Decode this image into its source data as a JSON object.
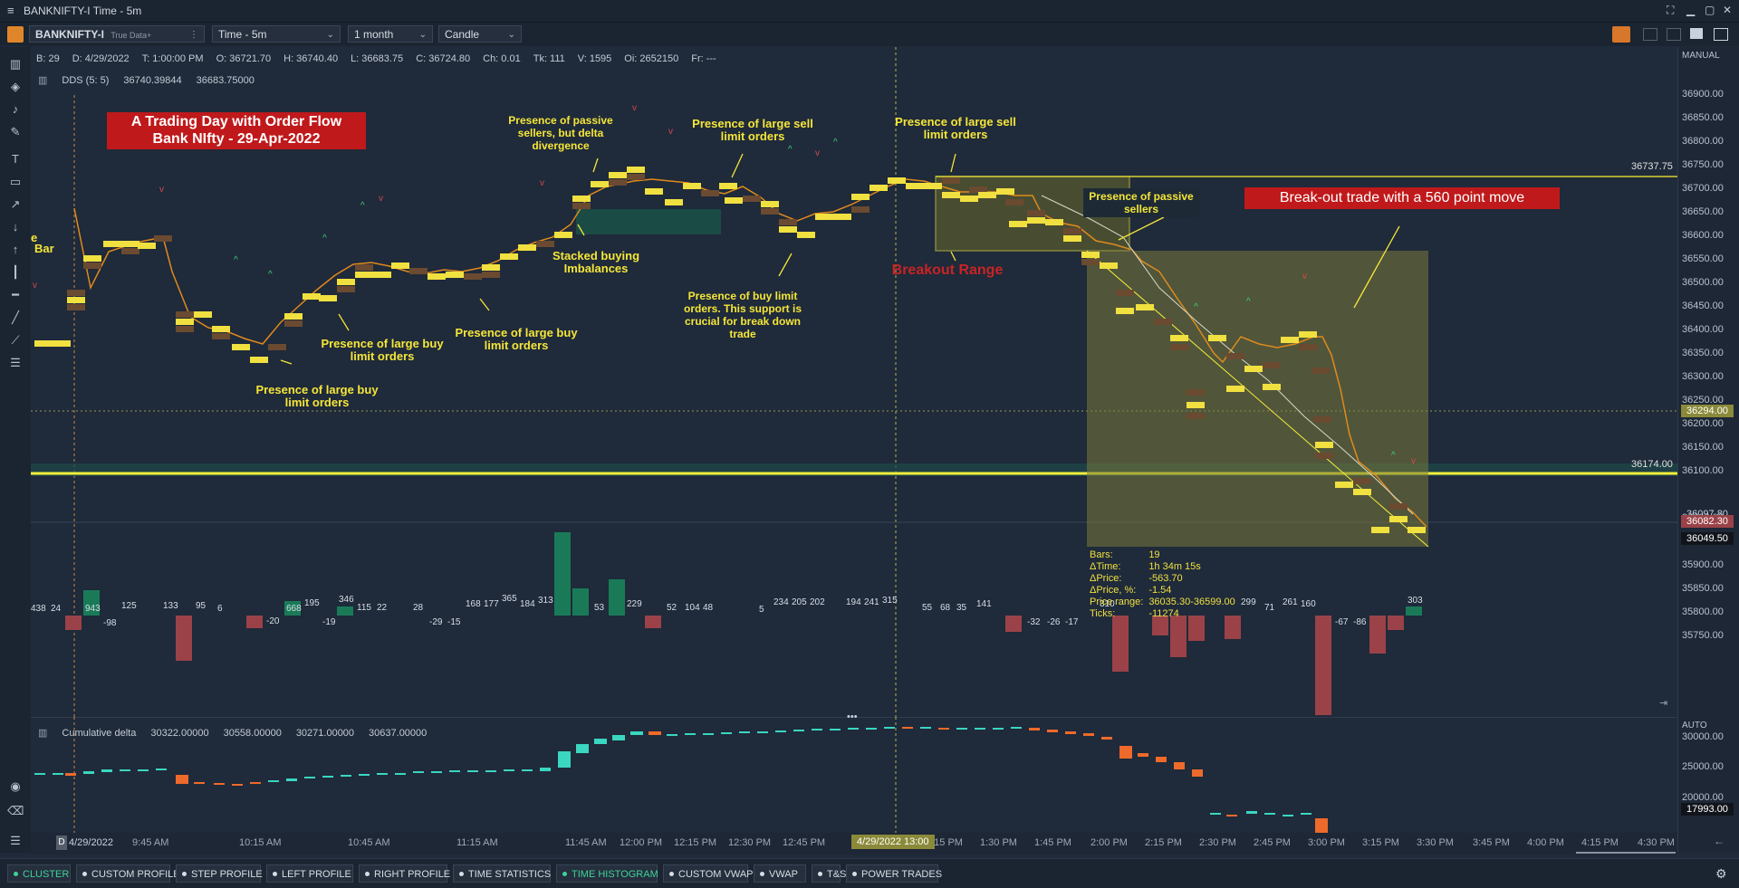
{
  "window": {
    "title": "BANKNIFTY-I Time - 5m"
  },
  "toolbar": {
    "symbol": "BANKNIFTY-I",
    "symbol_sub": "True Data+",
    "timeframe": "Time - 5m",
    "range": "1 month",
    "chart_type": "Candle"
  },
  "info": {
    "b": "B: 29",
    "d": "D: 4/29/2022",
    "t": "T: 1:00:00 PM",
    "o": "O: 36721.70",
    "h": "H: 36740.40",
    "l": "L: 36683.75",
    "c": "C: 36724.80",
    "ch": "Ch: 0.01",
    "tk": "Tk: 111",
    "v": "V: 1595",
    "oi": "Oi: 2652150",
    "fr": "Fr: ---"
  },
  "dds": {
    "label": "DDS (5: 5)",
    "v1": "36740.39844",
    "v2": "36683.75000"
  },
  "annotations": {
    "title_line1": "A Trading Day with Order Flow",
    "title_line2": "Bank NIfty - 29-Apr-2022",
    "a1": "Presence of large buy limit orders",
    "a2": "Presence of large buy limit orders",
    "a3": "Presence of large buy limit orders",
    "a4": "Presence of passive sellers, but delta divergence",
    "a5": "Stacked buying Imbalances",
    "a6": "Presence of large sell limit orders",
    "a7": "Presence of buy limit orders. This support is crucial for break down trade",
    "a8": "Presence of large sell limit orders",
    "a9": "Breakout Range",
    "a10": "Presence of passive sellers",
    "a11": "Break-out trade with a 560 point move",
    "a12": "Bar",
    "a13": "e"
  },
  "price_axis": {
    "mode": "MANUAL",
    "labels": [
      "36900.00",
      "36850.00",
      "36800.00",
      "36750.00",
      "36700.00",
      "36650.00",
      "36600.00",
      "36550.00",
      "36500.00",
      "36450.00",
      "36400.00",
      "36350.00",
      "36300.00",
      "36250.00",
      "36200.00",
      "36150.00",
      "36100.00",
      "36000.00",
      "35950.00",
      "35900.00",
      "35850.00",
      "35800.00",
      "35750.00"
    ],
    "level_high": "36737.75",
    "level_mid": "36294.00",
    "level_low": "36174.00",
    "last_a": "36097.80",
    "last_b": "36082.30",
    "last_c": "36049.50",
    "cd_mode": "AUTO",
    "cd_labels": [
      "30000.00",
      "25000.00",
      "20000.00"
    ],
    "cd_last": "17993.00"
  },
  "stats": {
    "bars_k": "Bars:",
    "bars_v": "19",
    "time_k": "ΔTime:",
    "time_v": "1h 34m 15s",
    "price_k": "ΔPrice:",
    "price_v": "-563.70",
    "pct_k": "ΔPrice, %:",
    "pct_v": "-1.54",
    "range_k": "Price range:",
    "range_v": "36035.30-36599.00",
    "ticks_k": "Ticks:",
    "ticks_v": "-11274"
  },
  "delta_labels": [
    "438",
    "24",
    "943",
    "-98",
    "125",
    "133",
    "95",
    "6",
    "-20",
    "668",
    "195",
    "-19",
    "346",
    "115",
    "22",
    "28",
    "-29",
    "-15",
    "168",
    "177",
    "365",
    "184",
    "313",
    "53",
    "229",
    "52",
    "104",
    "48",
    "5",
    "234",
    "205",
    "202",
    "194",
    "241",
    "315",
    "55",
    "68",
    "35",
    "141",
    "-32",
    "-26",
    "-17",
    "310",
    "299",
    "71",
    "261",
    "160",
    "-67",
    "-86",
    "303"
  ],
  "cumulative_delta": {
    "label": "Cumulative delta",
    "v1": "30322.00000",
    "v2": "30558.00000",
    "v3": "30271.00000",
    "v4": "30637.00000"
  },
  "time_axis": {
    "start": "4/29/2022",
    "labels": [
      "9:45 AM",
      "10:15 AM",
      "10:45 AM",
      "11:15 AM",
      "11:45 AM",
      "12:00 PM",
      "12:15 PM",
      "12:30 PM",
      "12:45 PM",
      "1:15 PM",
      "1:30 PM",
      "1:45 PM",
      "2:00 PM",
      "2:15 PM",
      "2:30 PM",
      "2:45 PM",
      "3:00 PM",
      "3:15 PM",
      "3:30 PM",
      "3:45 PM",
      "4:00 PM",
      "4:15 PM",
      "4:30 PM"
    ],
    "crosshair": "4/29/2022 13:00"
  },
  "bottom_tabs": [
    "CLUSTER",
    "CUSTOM PROFILE",
    "STEP PROFILE",
    "LEFT PROFILE",
    "RIGHT PROFILE",
    "TIME STATISTICS",
    "TIME HISTOGRAM",
    "CUSTOM VWAP",
    "VWAP",
    "T&S",
    "POWER TRADES"
  ],
  "colors": {
    "accent_yellow": "#f0e040",
    "bull": "#1a7a58",
    "bear": "#9a4248",
    "cd_up": "#3ad6c0",
    "cd_down": "#ee6a2a",
    "box": "#8a8a3a"
  }
}
